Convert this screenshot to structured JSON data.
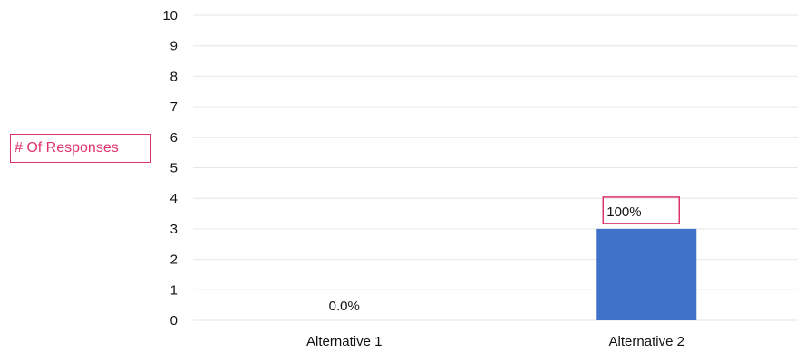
{
  "chart_data": {
    "type": "bar",
    "ylabel": "# Of Responses",
    "xlabel": "",
    "title": "",
    "categories": [
      "Alternative 1",
      "Alternative 2"
    ],
    "values": [
      0,
      3
    ],
    "data_labels": [
      "0.0%",
      "100%"
    ],
    "highlighted_labels": [
      "100%"
    ],
    "ylim": [
      0,
      10
    ],
    "yticks": [
      0,
      1,
      2,
      3,
      4,
      5,
      6,
      7,
      8,
      9,
      10
    ],
    "grid": true,
    "legend": "none",
    "colors": {
      "bar": "#3f72c8",
      "annotation": "#e0336b"
    }
  }
}
